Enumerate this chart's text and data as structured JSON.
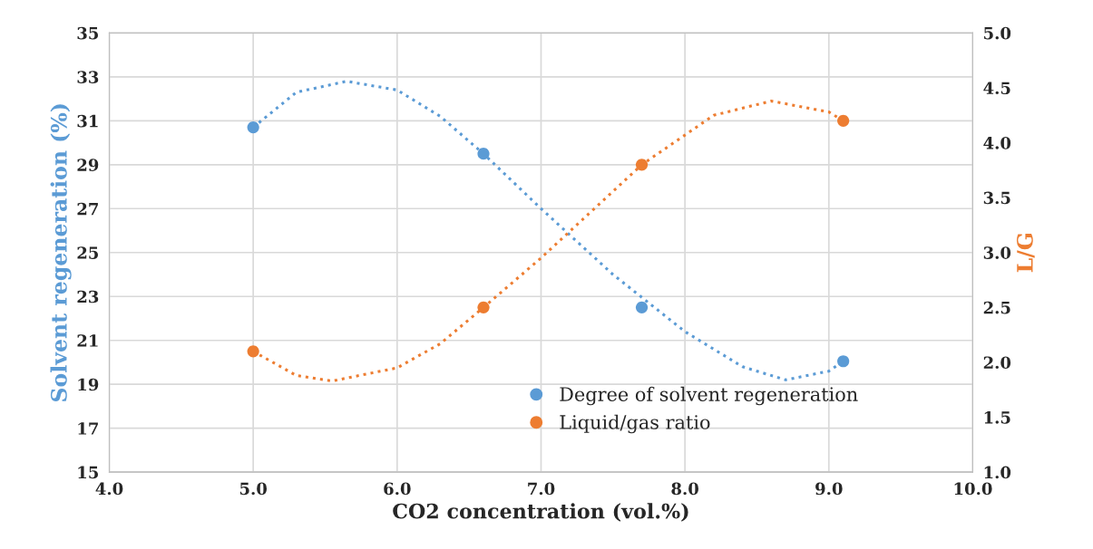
{
  "chart_data": {
    "type": "scatter",
    "xlabel": "CO2 concentration (vol.%)",
    "ylabel": "Solvent regeneration (%)",
    "y2label": "L/G",
    "series": [
      {
        "name": "Degree of solvent regeneration",
        "marker": "circle",
        "color": "#5b9bd5",
        "x": [
          5.0,
          6.6,
          7.7,
          9.1
        ],
        "values": [
          30.7,
          29.5,
          22.5,
          20.05
        ]
      },
      {
        "name": "Liquid/gas ratio",
        "marker": "circle",
        "color": "#ed7d31",
        "axis": "y2",
        "x": [
          5.0,
          6.6,
          7.7,
          9.1
        ],
        "values": [
          2.1,
          2.5,
          3.8,
          4.2
        ]
      },
      {
        "type": "line",
        "marker": "none",
        "color": "#5b9bd5",
        "line_style": "dotted",
        "x": [
          5.0,
          5.3,
          5.65,
          6.0,
          6.3,
          6.6,
          7.0,
          7.5,
          8.0,
          8.4,
          8.7,
          9.0,
          9.1
        ],
        "values": [
          30.7,
          32.3,
          32.8,
          32.4,
          31.2,
          29.5,
          27.0,
          24.0,
          21.4,
          19.8,
          19.2,
          19.6,
          20.05
        ]
      },
      {
        "type": "line",
        "marker": "none",
        "color": "#ed7d31",
        "line_style": "dotted",
        "axis": "y2",
        "x": [
          5.0,
          5.3,
          5.55,
          6.0,
          6.3,
          6.6,
          7.0,
          7.7,
          8.2,
          8.6,
          9.0,
          9.1
        ],
        "values": [
          2.1,
          1.88,
          1.83,
          1.95,
          2.17,
          2.5,
          2.95,
          3.8,
          4.25,
          4.38,
          4.28,
          4.2
        ]
      }
    ],
    "xlim": [
      4.0,
      10.0
    ],
    "xticks": [
      {
        "value": 4.0,
        "label": "4.0"
      },
      {
        "value": 5.0,
        "label": "5.0"
      },
      {
        "value": 6.0,
        "label": "6.0"
      },
      {
        "value": 7.0,
        "label": "7.0"
      },
      {
        "value": 8.0,
        "label": "8.0"
      },
      {
        "value": 9.0,
        "label": "9.0"
      },
      {
        "value": 10.0,
        "label": "10.0"
      }
    ],
    "ylim": [
      15,
      35
    ],
    "yticks": [
      15,
      17,
      19,
      21,
      23,
      25,
      27,
      29,
      31,
      33,
      35
    ],
    "y2lim": [
      1.0,
      5.0
    ],
    "y2ticks": [
      {
        "value": 1.0,
        "label": "1.0"
      },
      {
        "value": 1.5,
        "label": "1.5"
      },
      {
        "value": 2.0,
        "label": "2.0"
      },
      {
        "value": 2.5,
        "label": "2.5"
      },
      {
        "value": 3.0,
        "label": "3.0"
      },
      {
        "value": 3.5,
        "label": "3.5"
      },
      {
        "value": 4.0,
        "label": "4.0"
      },
      {
        "value": 4.5,
        "label": "4.5"
      },
      {
        "value": 5.0,
        "label": "5.0"
      }
    ],
    "grid": true,
    "legend": "bottom"
  }
}
